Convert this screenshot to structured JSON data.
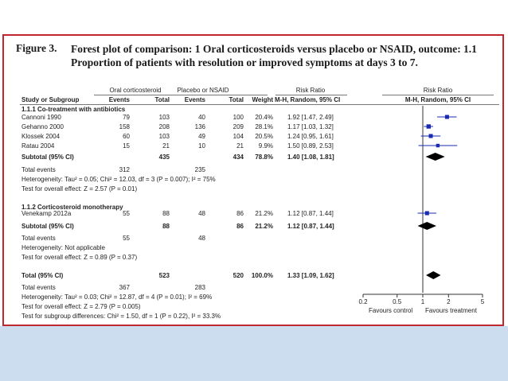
{
  "figure": {
    "label": "Figure 3.",
    "title_line1": "Forest plot of comparison: 1 Oral corticosteroids versus placebo or NSAID, outcome: 1.1",
    "title_line2": "Proportion of patients with resolution or improved symptoms at days 3 to 7."
  },
  "headers": {
    "group_exp": "Oral corticosteroid",
    "group_ctrl": "Placebo or NSAID",
    "rr_table": "Risk Ratio",
    "rr_plot": "Risk Ratio",
    "study": "Study or Subgroup",
    "events_exp": "Events",
    "total_exp": "Total",
    "events_ctrl": "Events",
    "total_ctrl": "Total",
    "weight": "Weight",
    "method_table": "M-H, Random, 95% CI",
    "method_plot": "M-H, Random, 95% CI"
  },
  "subgroup1": {
    "title": "1.1.1 Co-treatment with antibiotics",
    "subtotal": {
      "label": "Subtotal (95% CI)",
      "total_exp": "435",
      "total_ctrl": "434",
      "weight": "78.8%",
      "rr": "1.40 [1.08, 1.81]"
    },
    "total_events": {
      "label": "Total events",
      "exp": "312",
      "ctrl": "235"
    },
    "heterogeneity": "Heterogeneity: Tau² = 0.05; Chi² = 12.03, df = 3 (P = 0.007); I² = 75%",
    "overall": "Test for overall effect: Z = 2.57 (P = 0.01)"
  },
  "subgroup2": {
    "title": "1.1.2 Corticosteroid monotherapy",
    "subtotal": {
      "label": "Subtotal (95% CI)",
      "total_exp": "88",
      "total_ctrl": "86",
      "weight": "21.2%",
      "rr": "1.12 [0.87, 1.44]"
    },
    "total_events": {
      "label": "Total events",
      "exp": "55",
      "ctrl": "48"
    },
    "heterogeneity": "Heterogeneity: Not applicable",
    "overall": "Test for overall effect: Z = 0.89 (P = 0.37)"
  },
  "total": {
    "label": "Total (95% CI)",
    "total_exp": "523",
    "total_ctrl": "520",
    "weight": "100.0%",
    "rr": "1.33 [1.09, 1.62]",
    "total_events": {
      "label": "Total events",
      "exp": "367",
      "ctrl": "283"
    },
    "heterogeneity": "Heterogeneity: Tau² = 0.03; Chi² = 12.87, df = 4 (P = 0.01); I² = 69%",
    "overall": "Test for overall effect: Z = 2.79 (P = 0.005)",
    "subgroup_diff": "Test for subgroup differences: Chi² = 1.50, df = 1 (P = 0.22), I² = 33.3%"
  },
  "axis_labels": {
    "left": "Favours control",
    "right": "Favours treatment"
  },
  "colors": {
    "frame": "#c0262d",
    "study_marker": "#1a2bb0",
    "diamond": "#000000",
    "bottom_band": "#cdddf0"
  },
  "chart_data": {
    "type": "forest",
    "x_scale": "log",
    "xlim": [
      0.2,
      5
    ],
    "x_ticks": [
      "0.2",
      "0.5",
      "1",
      "2",
      "5"
    ],
    "reference_line": 1,
    "studies": [
      {
        "name": "Cannoni 1990",
        "events_exp": "79",
        "total_exp": "103",
        "events_ctrl": "40",
        "total_ctrl": "100",
        "weight": "20.4%",
        "ci_text": "1.92 [1.47, 2.49]",
        "rr": 1.92,
        "lo": 1.47,
        "hi": 2.49
      },
      {
        "name": "Gehanno 2000",
        "events_exp": "158",
        "total_exp": "208",
        "events_ctrl": "136",
        "total_ctrl": "209",
        "weight": "28.1%",
        "ci_text": "1.17 [1.03, 1.32]",
        "rr": 1.17,
        "lo": 1.03,
        "hi": 1.32
      },
      {
        "name": "Klossek 2004",
        "events_exp": "60",
        "total_exp": "103",
        "events_ctrl": "49",
        "total_ctrl": "104",
        "weight": "20.5%",
        "ci_text": "1.24 [0.95, 1.61]",
        "rr": 1.24,
        "lo": 0.95,
        "hi": 1.61
      },
      {
        "name": "Ratau 2004",
        "events_exp": "15",
        "total_exp": "21",
        "events_ctrl": "10",
        "total_ctrl": "21",
        "weight": "9.9%",
        "ci_text": "1.50 [0.89, 2.53]",
        "rr": 1.5,
        "lo": 0.89,
        "hi": 2.53
      },
      {
        "name": "Venekamp 2012a",
        "events_exp": "55",
        "total_exp": "88",
        "events_ctrl": "48",
        "total_ctrl": "86",
        "weight": "21.2%",
        "ci_text": "1.12 [0.87, 1.44]",
        "rr": 1.12,
        "lo": 0.87,
        "hi": 1.44
      }
    ],
    "pooled": [
      {
        "name": "Subtotal (95% CI)",
        "group": "1.1.1 Co-treatment with antibiotics",
        "rr": 1.4,
        "lo": 1.08,
        "hi": 1.81
      },
      {
        "name": "Subtotal (95% CI)",
        "group": "1.1.2 Corticosteroid monotherapy",
        "rr": 1.12,
        "lo": 0.87,
        "hi": 1.44
      },
      {
        "name": "Total (95% CI)",
        "rr": 1.33,
        "lo": 1.09,
        "hi": 1.62
      }
    ]
  }
}
